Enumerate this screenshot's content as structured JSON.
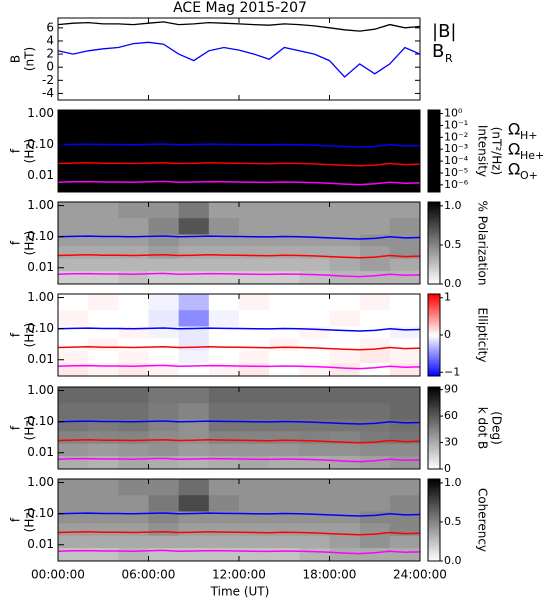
{
  "chart_data": {
    "type": "multi-panel",
    "title": "ACE Mag 2015-207",
    "xlabel": "Time (UT)",
    "x": [
      0,
      1,
      2,
      3,
      4,
      5,
      6,
      7,
      8,
      9,
      10,
      11,
      12,
      13,
      14,
      15,
      16,
      17,
      18,
      19,
      20,
      21,
      22,
      23,
      24
    ],
    "xlim": [
      0,
      24
    ],
    "xticks": [
      {
        "value": 0,
        "label": "00:00:00"
      },
      {
        "value": 6,
        "label": "06:00:00"
      },
      {
        "value": 12,
        "label": "12:00:00"
      },
      {
        "value": 18,
        "label": "18:00:00"
      },
      {
        "value": 24,
        "label": "24:00:00"
      }
    ],
    "line_panel": {
      "type": "line",
      "ylabel": [
        "B",
        "(nT)"
      ],
      "ylim": [
        -5,
        7.5
      ],
      "yticks": [
        -4,
        -2,
        0,
        2,
        4,
        6
      ],
      "series": [
        {
          "name": "|B|",
          "color": "#000000",
          "values": [
            6.5,
            6.7,
            6.8,
            6.6,
            6.6,
            6.5,
            6.7,
            6.9,
            6.5,
            6.6,
            6.8,
            6.7,
            6.6,
            6.5,
            6.4,
            6.6,
            6.5,
            6.3,
            6.0,
            5.7,
            5.5,
            5.8,
            6.5,
            6.0,
            6.2
          ]
        },
        {
          "name": "B",
          "subscript": "R",
          "color": "#0000ff",
          "values": [
            2.5,
            2.0,
            2.5,
            2.8,
            3.0,
            3.6,
            3.8,
            3.5,
            2.0,
            1.0,
            2.5,
            3.0,
            2.6,
            2.0,
            1.2,
            3.0,
            2.5,
            2.0,
            1.0,
            -1.5,
            0.5,
            -1.0,
            0.5,
            3.0,
            2.0
          ]
        }
      ]
    },
    "freq_axis": {
      "ylabel": [
        "f",
        "(Hz)"
      ],
      "log": true,
      "ylim": [
        0.003,
        1.3
      ],
      "yticks": [
        0.01,
        {
          "value": 0.1,
          "label": "0.10"
        },
        {
          "value": 1,
          "label": "1.00"
        }
      ]
    },
    "gyro_lines": [
      {
        "name": "Ω",
        "subscript": "H+",
        "color": "#0000ff",
        "values": [
          0.099,
          0.102,
          0.104,
          0.101,
          0.101,
          0.099,
          0.102,
          0.105,
          0.099,
          0.101,
          0.104,
          0.102,
          0.101,
          0.099,
          0.098,
          0.101,
          0.099,
          0.096,
          0.091,
          0.087,
          0.084,
          0.088,
          0.099,
          0.091,
          0.094
        ]
      },
      {
        "name": "Ω",
        "subscript": "He+",
        "color": "#ff0000",
        "values": [
          0.0248,
          0.0255,
          0.026,
          0.0252,
          0.0252,
          0.0248,
          0.0255,
          0.0262,
          0.0248,
          0.0252,
          0.026,
          0.0255,
          0.0252,
          0.0248,
          0.0244,
          0.0252,
          0.0248,
          0.024,
          0.0228,
          0.0217,
          0.021,
          0.022,
          0.0248,
          0.0228,
          0.0236
        ]
      },
      {
        "name": "Ω",
        "subscript": "O+",
        "color": "#ff00ff",
        "values": [
          0.0062,
          0.0064,
          0.0065,
          0.0063,
          0.0063,
          0.0062,
          0.0064,
          0.0066,
          0.0062,
          0.0063,
          0.0065,
          0.0064,
          0.0063,
          0.0062,
          0.0061,
          0.0063,
          0.0062,
          0.006,
          0.0057,
          0.0054,
          0.0052,
          0.0055,
          0.0062,
          0.0057,
          0.0059
        ]
      }
    ],
    "t_edges": [
      0,
      2,
      4,
      6,
      8,
      10,
      12,
      14,
      16,
      18,
      20,
      22,
      24
    ],
    "f_edges": [
      0.003,
      0.008,
      0.02,
      0.05,
      0.12,
      0.4,
      1.3
    ],
    "spectrograms": [
      {
        "type": "heatmap",
        "colormap": "rainbow",
        "zlog": true,
        "cbar_label": [
          "Intensity",
          "(nT²/Hz)"
        ],
        "zlim": [
          2.5e-07,
          2
        ],
        "zticks": [
          {
            "value": 1,
            "label": "10⁰"
          },
          {
            "value": 0.1,
            "label": "10⁻¹"
          },
          {
            "value": 0.01,
            "label": "10⁻²"
          },
          {
            "value": 0.001,
            "label": "10⁻³"
          },
          {
            "value": 0.0001,
            "label": "10⁻⁴"
          },
          {
            "value": 1e-05,
            "label": "10⁻⁵"
          },
          {
            "value": 1e-06,
            "label": "10⁻⁶"
          }
        ],
        "z": [
          [
            0.006,
            0.008,
            0.005,
            0.006,
            0.01,
            0.008,
            0.005,
            0.006,
            0.008,
            0.013,
            0.02,
            0.016
          ],
          [
            0.0013,
            0.0016,
            0.001,
            0.0013,
            0.0016,
            0.0013,
            0.001,
            0.0013,
            0.0016,
            0.002,
            0.003,
            0.0025
          ],
          [
            0.00025,
            0.0003,
            0.00025,
            0.0003,
            0.0004,
            0.00025,
            0.0002,
            0.00025,
            0.0003,
            0.0004,
            0.0006,
            0.0005
          ],
          [
            5e-05,
            6e-05,
            4e-05,
            5e-05,
            8e-05,
            5e-05,
            4e-05,
            5e-05,
            6e-05,
            8e-05,
            0.0001,
            8e-05
          ],
          [
            1e-05,
            1.3e-05,
            8e-06,
            1e-05,
            1.6e-05,
            1e-05,
            8e-06,
            1e-05,
            1.3e-05,
            1.6e-05,
            2e-05,
            1.6e-05
          ],
          [
            2.5e-06,
            3e-06,
            2.5e-06,
            3e-06,
            4e-06,
            2.5e-06,
            2e-06,
            2.5e-06,
            3e-06,
            4e-06,
            5e-06,
            4e-06
          ]
        ]
      },
      {
        "type": "heatmap",
        "colormap": "gray",
        "zlog": false,
        "cbar_label": [
          "% Polarization"
        ],
        "zlim": [
          0,
          1.05
        ],
        "zticks": [
          {
            "value": 0,
            "label": "0.0"
          },
          {
            "value": 0.5,
            "label": "0.5"
          },
          {
            "value": 1,
            "label": "1.0"
          }
        ],
        "z": [
          [
            0.2,
            0.2,
            0.25,
            0.2,
            0.2,
            0.2,
            0.2,
            0.2,
            0.25,
            0.3,
            0.3,
            0.3
          ],
          [
            0.3,
            0.3,
            0.3,
            0.3,
            0.3,
            0.3,
            0.3,
            0.3,
            0.3,
            0.35,
            0.4,
            0.35
          ],
          [
            0.35,
            0.35,
            0.35,
            0.4,
            0.35,
            0.35,
            0.35,
            0.35,
            0.35,
            0.35,
            0.4,
            0.45
          ],
          [
            0.4,
            0.4,
            0.4,
            0.45,
            0.4,
            0.4,
            0.4,
            0.4,
            0.4,
            0.4,
            0.45,
            0.45
          ],
          [
            0.4,
            0.4,
            0.4,
            0.5,
            0.7,
            0.45,
            0.4,
            0.4,
            0.4,
            0.4,
            0.4,
            0.45
          ],
          [
            0.4,
            0.4,
            0.45,
            0.45,
            0.55,
            0.4,
            0.4,
            0.4,
            0.4,
            0.4,
            0.4,
            0.4
          ]
        ]
      },
      {
        "type": "heatmap",
        "colormap": "bwr",
        "zlog": false,
        "cbar_label": [
          "Ellipticity"
        ],
        "zlim": [
          -1.1,
          1.1
        ],
        "zticks": [
          {
            "value": -1,
            "label": "−1"
          },
          0,
          1
        ],
        "z": [
          [
            0.1,
            0.05,
            0.1,
            0.05,
            0.0,
            0.05,
            0.1,
            0.0,
            0.05,
            0.1,
            0.0,
            0.1
          ],
          [
            0.05,
            0.0,
            0.05,
            0.0,
            -0.05,
            0.0,
            0.05,
            0.0,
            0.0,
            0.05,
            0.1,
            0.05
          ],
          [
            0.0,
            0.05,
            0.0,
            0.0,
            -0.1,
            0.0,
            0.0,
            0.05,
            0.0,
            0.0,
            0.05,
            0.0
          ],
          [
            0.0,
            0.0,
            0.05,
            -0.05,
            -0.1,
            0.0,
            0.0,
            0.0,
            0.05,
            0.0,
            0.0,
            -0.05
          ],
          [
            0.05,
            0.0,
            0.0,
            -0.1,
            -0.5,
            -0.05,
            0.0,
            0.0,
            0.0,
            0.05,
            0.0,
            0.0
          ],
          [
            0.0,
            0.05,
            0.0,
            -0.05,
            -0.3,
            0.0,
            0.05,
            0.0,
            0.0,
            0.0,
            0.05,
            0.0
          ]
        ]
      },
      {
        "type": "heatmap",
        "colormap": "gray",
        "zlog": false,
        "cbar_label": [
          "k dot B",
          "(Deg)"
        ],
        "zlim": [
          0,
          93
        ],
        "zticks": [
          0,
          30,
          60,
          90
        ],
        "z": [
          [
            30,
            28,
            32,
            30,
            28,
            30,
            32,
            30,
            30,
            32,
            35,
            38
          ],
          [
            38,
            36,
            38,
            40,
            36,
            38,
            38,
            38,
            40,
            40,
            42,
            42
          ],
          [
            45,
            44,
            45,
            42,
            40,
            45,
            45,
            45,
            46,
            45,
            48,
            50
          ],
          [
            50,
            48,
            50,
            45,
            40,
            50,
            50,
            50,
            50,
            50,
            50,
            52
          ],
          [
            52,
            52,
            52,
            48,
            45,
            52,
            52,
            52,
            52,
            52,
            52,
            55
          ],
          [
            55,
            55,
            55,
            50,
            50,
            55,
            55,
            55,
            55,
            55,
            55,
            55
          ]
        ]
      },
      {
        "type": "heatmap",
        "colormap": "gray",
        "zlog": false,
        "cbar_label": [
          "Coherency"
        ],
        "zlim": [
          0,
          1.05
        ],
        "zticks": [
          {
            "value": 0,
            "label": "0.0"
          },
          {
            "value": 0.5,
            "label": "0.5"
          },
          {
            "value": 1,
            "label": "1.0"
          }
        ],
        "z": [
          [
            0.25,
            0.25,
            0.3,
            0.25,
            0.25,
            0.25,
            0.25,
            0.25,
            0.3,
            0.35,
            0.35,
            0.35
          ],
          [
            0.35,
            0.35,
            0.35,
            0.35,
            0.35,
            0.35,
            0.35,
            0.35,
            0.35,
            0.4,
            0.45,
            0.4
          ],
          [
            0.4,
            0.4,
            0.4,
            0.45,
            0.4,
            0.4,
            0.4,
            0.4,
            0.4,
            0.4,
            0.45,
            0.5
          ],
          [
            0.45,
            0.45,
            0.45,
            0.5,
            0.45,
            0.45,
            0.45,
            0.45,
            0.45,
            0.45,
            0.5,
            0.5
          ],
          [
            0.45,
            0.45,
            0.45,
            0.55,
            0.75,
            0.5,
            0.45,
            0.45,
            0.45,
            0.45,
            0.45,
            0.5
          ],
          [
            0.45,
            0.45,
            0.5,
            0.5,
            0.6,
            0.45,
            0.45,
            0.45,
            0.45,
            0.45,
            0.45,
            0.45
          ]
        ]
      }
    ]
  }
}
